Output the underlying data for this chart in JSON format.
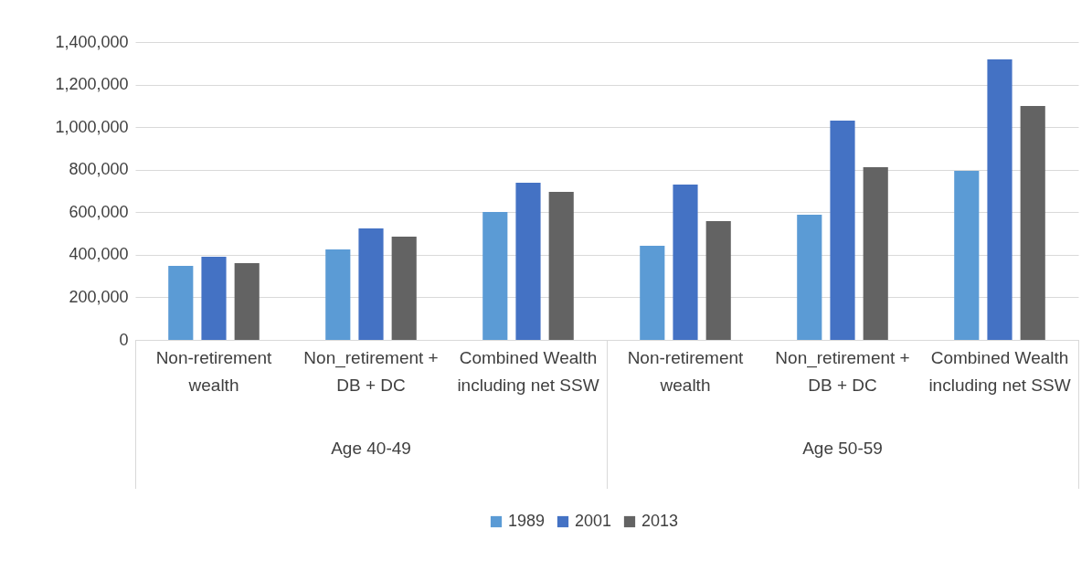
{
  "chart_data": {
    "type": "bar",
    "categories": [
      "Non-retirement wealth",
      "Non_retirement + DB + DC",
      "Combined Wealth including net SSW",
      "Non-retirement wealth",
      "Non_retirement + DB + DC",
      "Combined Wealth including net SSW"
    ],
    "series": [
      {
        "name": "1989",
        "color": "#5b9bd5",
        "values": [
          348000,
          425000,
          601000,
          442000,
          588000,
          795000
        ]
      },
      {
        "name": "2001",
        "color": "#4472c4",
        "values": [
          391000,
          524000,
          739000,
          730000,
          1031000,
          1318000
        ]
      },
      {
        "name": "2013",
        "color": "#636363",
        "values": [
          361000,
          485000,
          696000,
          558000,
          812000,
          1099000
        ]
      }
    ],
    "annotations": [
      "Age 40-49",
      "Age 50-59"
    ],
    "ylim": [
      0,
      1400000
    ],
    "yticks": [
      {
        "value": 0,
        "label": "0"
      },
      {
        "value": 200000,
        "label": "200,000"
      },
      {
        "value": 400000,
        "label": "400,000"
      },
      {
        "value": 600000,
        "label": "600,000"
      },
      {
        "value": 800000,
        "label": "800,000"
      },
      {
        "value": 1000000,
        "label": "1,000,000"
      },
      {
        "value": 1200000,
        "label": "1,200,000"
      },
      {
        "value": 1400000,
        "label": "1,400,000"
      }
    ],
    "grid": "y",
    "legend": "bottom"
  }
}
